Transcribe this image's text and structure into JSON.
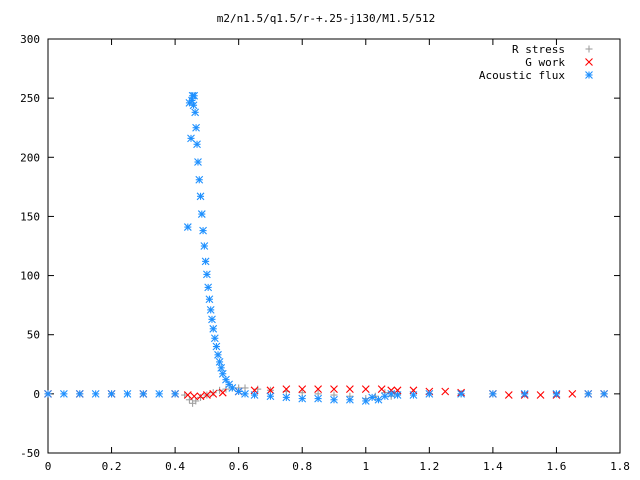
{
  "chart_data": {
    "type": "scatter",
    "title": "m2/n1.5/q1.5/r-+.25-j130/M1.5/512",
    "xlabel": "",
    "ylabel": "",
    "xlim": [
      0,
      1.8
    ],
    "ylim": [
      -50,
      300
    ],
    "x_ticks": [
      "0",
      "0.2",
      "0.4",
      "0.6",
      "0.8",
      "1",
      "1.2",
      "1.4",
      "1.6",
      "1.8"
    ],
    "y_ticks": [
      "-50",
      "0",
      "50",
      "100",
      "150",
      "200",
      "250",
      "300"
    ],
    "grid": false,
    "legend_position": "top-right",
    "series": [
      {
        "name": "R stress",
        "marker": "+",
        "color": "#a0a0a0",
        "points": [
          [
            0.0,
            0
          ],
          [
            0.1,
            0
          ],
          [
            0.2,
            0
          ],
          [
            0.3,
            0
          ],
          [
            0.4,
            0
          ],
          [
            0.43,
            -1
          ],
          [
            0.445,
            -5
          ],
          [
            0.455,
            -8
          ],
          [
            0.465,
            -6
          ],
          [
            0.48,
            -3
          ],
          [
            0.5,
            -1
          ],
          [
            0.52,
            1
          ],
          [
            0.54,
            3
          ],
          [
            0.56,
            4
          ],
          [
            0.58,
            5
          ],
          [
            0.6,
            5
          ],
          [
            0.62,
            5
          ],
          [
            0.66,
            4
          ],
          [
            0.7,
            3
          ],
          [
            0.75,
            2
          ],
          [
            0.8,
            1
          ],
          [
            0.85,
            0
          ],
          [
            0.9,
            -1
          ],
          [
            0.95,
            -2
          ],
          [
            1.0,
            -4
          ],
          [
            1.03,
            -2
          ],
          [
            1.06,
            1
          ],
          [
            1.08,
            -2
          ],
          [
            1.1,
            0
          ],
          [
            1.2,
            0
          ],
          [
            1.3,
            0
          ],
          [
            1.4,
            0
          ],
          [
            1.5,
            0
          ],
          [
            1.6,
            0
          ],
          [
            1.7,
            0
          ],
          [
            1.75,
            0
          ]
        ]
      },
      {
        "name": "G work",
        "marker": "x",
        "color": "#ff0000",
        "points": [
          [
            0.0,
            0
          ],
          [
            0.1,
            0
          ],
          [
            0.2,
            0
          ],
          [
            0.3,
            0
          ],
          [
            0.4,
            0
          ],
          [
            0.44,
            -1
          ],
          [
            0.46,
            -2
          ],
          [
            0.48,
            -2
          ],
          [
            0.5,
            -1
          ],
          [
            0.52,
            0
          ],
          [
            0.55,
            1
          ],
          [
            0.6,
            2
          ],
          [
            0.65,
            3
          ],
          [
            0.7,
            3
          ],
          [
            0.75,
            4
          ],
          [
            0.8,
            4
          ],
          [
            0.85,
            4
          ],
          [
            0.9,
            4
          ],
          [
            0.95,
            4
          ],
          [
            1.0,
            4
          ],
          [
            1.05,
            4
          ],
          [
            1.08,
            3
          ],
          [
            1.1,
            3
          ],
          [
            1.15,
            3
          ],
          [
            1.2,
            2
          ],
          [
            1.25,
            2
          ],
          [
            1.3,
            1
          ],
          [
            1.4,
            0
          ],
          [
            1.45,
            -1
          ],
          [
            1.5,
            -1
          ],
          [
            1.55,
            -1
          ],
          [
            1.6,
            -1
          ],
          [
            1.65,
            0
          ],
          [
            1.7,
            0
          ],
          [
            1.75,
            0
          ]
        ]
      },
      {
        "name": "Acoustic flux",
        "marker": "*",
        "color": "#1e90ff",
        "points": [
          [
            0.0,
            0
          ],
          [
            0.05,
            0
          ],
          [
            0.1,
            0
          ],
          [
            0.15,
            0
          ],
          [
            0.2,
            0
          ],
          [
            0.25,
            0
          ],
          [
            0.3,
            0
          ],
          [
            0.35,
            0
          ],
          [
            0.4,
            0
          ],
          [
            0.44,
            141
          ],
          [
            0.445,
            246
          ],
          [
            0.45,
            216
          ],
          [
            0.453,
            248
          ],
          [
            0.455,
            252
          ],
          [
            0.458,
            244
          ],
          [
            0.46,
            252
          ],
          [
            0.463,
            238
          ],
          [
            0.466,
            225
          ],
          [
            0.469,
            211
          ],
          [
            0.472,
            196
          ],
          [
            0.476,
            181
          ],
          [
            0.48,
            167
          ],
          [
            0.484,
            152
          ],
          [
            0.488,
            138
          ],
          [
            0.492,
            125
          ],
          [
            0.496,
            112
          ],
          [
            0.5,
            101
          ],
          [
            0.504,
            90
          ],
          [
            0.508,
            80
          ],
          [
            0.512,
            71
          ],
          [
            0.516,
            63
          ],
          [
            0.52,
            55
          ],
          [
            0.525,
            47
          ],
          [
            0.53,
            40
          ],
          [
            0.535,
            33
          ],
          [
            0.54,
            27
          ],
          [
            0.545,
            22
          ],
          [
            0.55,
            17
          ],
          [
            0.56,
            12
          ],
          [
            0.57,
            8
          ],
          [
            0.58,
            5
          ],
          [
            0.6,
            2
          ],
          [
            0.62,
            0
          ],
          [
            0.65,
            -1
          ],
          [
            0.7,
            -2
          ],
          [
            0.75,
            -3
          ],
          [
            0.8,
            -4
          ],
          [
            0.85,
            -4
          ],
          [
            0.9,
            -5
          ],
          [
            0.95,
            -5
          ],
          [
            1.0,
            -6
          ],
          [
            1.02,
            -3
          ],
          [
            1.04,
            -5
          ],
          [
            1.06,
            -2
          ],
          [
            1.08,
            0
          ],
          [
            1.1,
            -1
          ],
          [
            1.15,
            -1
          ],
          [
            1.2,
            0
          ],
          [
            1.3,
            0
          ],
          [
            1.4,
            0
          ],
          [
            1.5,
            0
          ],
          [
            1.6,
            0
          ],
          [
            1.7,
            0
          ],
          [
            1.75,
            0
          ]
        ]
      }
    ]
  }
}
